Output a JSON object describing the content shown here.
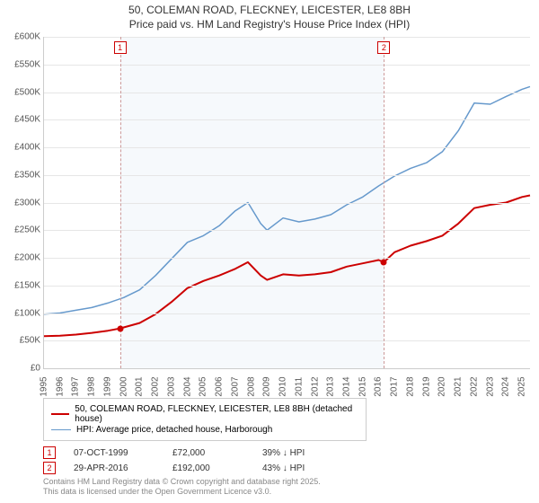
{
  "title_line1": "50, COLEMAN ROAD, FLECKNEY, LEICESTER, LE8 8BH",
  "title_line2": "Price paid vs. HM Land Registry's House Price Index (HPI)",
  "chart": {
    "type": "line",
    "background_color": "#ffffff",
    "plot_band_color": "#f6f9fc",
    "plot_band_xstart": 1999.77,
    "plot_band_xend": 2016.33,
    "grid_color": "#e6e6e6",
    "axis_color": "#cccccc",
    "xlim": [
      1995,
      2025.5
    ],
    "ylim": [
      0,
      600000
    ],
    "ytick_step": 50000,
    "ytick_prefix": "£",
    "ytick_suffix": "K",
    "ytick_divisor": 1000,
    "xticks": [
      1995,
      1996,
      1997,
      1998,
      1999,
      2000,
      2001,
      2002,
      2003,
      2004,
      2005,
      2006,
      2007,
      2008,
      2009,
      2010,
      2011,
      2012,
      2013,
      2014,
      2015,
      2016,
      2017,
      2018,
      2019,
      2020,
      2021,
      2022,
      2023,
      2024,
      2025
    ],
    "label_fontsize": 10,
    "label_color": "#555555",
    "series": [
      {
        "name": "price_paid",
        "label": "50, COLEMAN ROAD, FLECKNEY, LEICESTER, LE8 8BH (detached house)",
        "color": "#cc0000",
        "line_width": 2,
        "data": [
          [
            1995,
            58000
          ],
          [
            1996,
            59000
          ],
          [
            1997,
            61000
          ],
          [
            1998,
            64000
          ],
          [
            1999,
            68000
          ],
          [
            1999.77,
            72000
          ],
          [
            2000,
            74000
          ],
          [
            2001,
            82000
          ],
          [
            2002,
            98000
          ],
          [
            2003,
            120000
          ],
          [
            2004,
            145000
          ],
          [
            2005,
            158000
          ],
          [
            2006,
            168000
          ],
          [
            2007,
            180000
          ],
          [
            2007.8,
            192000
          ],
          [
            2008.6,
            168000
          ],
          [
            2009,
            160000
          ],
          [
            2010,
            170000
          ],
          [
            2011,
            168000
          ],
          [
            2012,
            170000
          ],
          [
            2013,
            174000
          ],
          [
            2014,
            184000
          ],
          [
            2015,
            190000
          ],
          [
            2016,
            196000
          ],
          [
            2016.33,
            192000
          ],
          [
            2017,
            210000
          ],
          [
            2018,
            222000
          ],
          [
            2019,
            230000
          ],
          [
            2020,
            240000
          ],
          [
            2021,
            262000
          ],
          [
            2022,
            290000
          ],
          [
            2023,
            296000
          ],
          [
            2024,
            300000
          ],
          [
            2025,
            310000
          ],
          [
            2025.5,
            313000
          ]
        ]
      },
      {
        "name": "hpi",
        "label": "HPI: Average price, detached house, Harborough",
        "color": "#6699cc",
        "line_width": 1.5,
        "data": [
          [
            1995,
            98000
          ],
          [
            1996,
            100000
          ],
          [
            1997,
            105000
          ],
          [
            1998,
            110000
          ],
          [
            1999,
            118000
          ],
          [
            2000,
            128000
          ],
          [
            2001,
            142000
          ],
          [
            2002,
            168000
          ],
          [
            2003,
            198000
          ],
          [
            2004,
            228000
          ],
          [
            2005,
            240000
          ],
          [
            2006,
            258000
          ],
          [
            2007,
            285000
          ],
          [
            2007.8,
            300000
          ],
          [
            2008.6,
            262000
          ],
          [
            2009,
            250000
          ],
          [
            2010,
            272000
          ],
          [
            2011,
            265000
          ],
          [
            2012,
            270000
          ],
          [
            2013,
            278000
          ],
          [
            2014,
            296000
          ],
          [
            2015,
            310000
          ],
          [
            2016,
            330000
          ],
          [
            2017,
            348000
          ],
          [
            2018,
            362000
          ],
          [
            2019,
            372000
          ],
          [
            2020,
            392000
          ],
          [
            2021,
            430000
          ],
          [
            2022,
            480000
          ],
          [
            2023,
            478000
          ],
          [
            2024,
            492000
          ],
          [
            2025,
            505000
          ],
          [
            2025.5,
            510000
          ]
        ]
      }
    ],
    "markers": [
      {
        "n": "1",
        "x": 1999.77,
        "y": 72000
      },
      {
        "n": "2",
        "x": 2016.33,
        "y": 192000
      }
    ],
    "marker_box_color": "#cc0000"
  },
  "legend": {
    "border_color": "#cccccc",
    "fontsize": 10
  },
  "info": [
    {
      "n": "1",
      "date": "07-OCT-1999",
      "price": "£72,000",
      "delta": "39% ↓ HPI"
    },
    {
      "n": "2",
      "date": "29-APR-2016",
      "price": "£192,000",
      "delta": "43% ↓ HPI"
    }
  ],
  "attribution_line1": "Contains HM Land Registry data © Crown copyright and database right 2025.",
  "attribution_line2": "This data is licensed under the Open Government Licence v3.0."
}
